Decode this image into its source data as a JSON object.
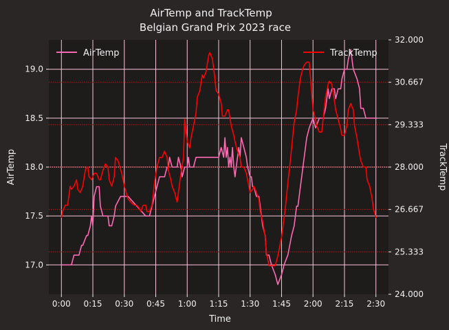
{
  "chart_data": {
    "type": "line",
    "title": "AirTemp and TrackTemp",
    "subtitle": "Belgian Grand Prix 2023 race",
    "xlabel": "Time",
    "ylabel_left": "AirTemp",
    "ylabel_right": "TrackTemp",
    "xlim": [
      -0.1,
      2.6
    ],
    "ylim_left": [
      16.7,
      19.3
    ],
    "ylim_right": [
      24.0,
      32.0
    ],
    "grid": true,
    "xticks": [
      0,
      0.25,
      0.5,
      0.75,
      1.0,
      1.25,
      1.5,
      1.75,
      2.0,
      2.25,
      2.5
    ],
    "xtick_labels": [
      "0:00",
      "0:15",
      "0:30",
      "0:45",
      "1:00",
      "1:15",
      "1:30",
      "1:45",
      "2:00",
      "2:15",
      "2:30"
    ],
    "yticks_left": [
      17.0,
      17.5,
      18.0,
      18.5,
      19.0
    ],
    "ytick_labels_left": [
      "17.0",
      "17.5",
      "18.0",
      "18.5",
      "19.0"
    ],
    "yticks_right": [
      24.0,
      25.333,
      26.667,
      28.0,
      29.333,
      30.667,
      32.0
    ],
    "ytick_labels_right": [
      "24.000",
      "25.333",
      "26.667",
      "28.000",
      "29.333",
      "30.667",
      "32.000"
    ],
    "legend_left": {
      "label": "AirTemp",
      "placement": "top-left"
    },
    "legend_right": {
      "label": "TrackTemp",
      "placement": "top-right"
    },
    "colors": {
      "background": "#292625",
      "plot_bg": "#1e1c1b",
      "text": "#f1f1f3",
      "air": "#ff69b4",
      "track": "#ff0000",
      "grid_left": "#fbc4dd",
      "grid_right": "#c41010"
    },
    "series": [
      {
        "name": "AirTemp",
        "axis": "left",
        "x": [
          0,
          0.08,
          0.1,
          0.125,
          0.14,
          0.16,
          0.17,
          0.2,
          0.21,
          0.23,
          0.24,
          0.25,
          0.26,
          0.28,
          0.3,
          0.31,
          0.33,
          0.34,
          0.37,
          0.38,
          0.4,
          0.42,
          0.43,
          0.47,
          0.48,
          0.5,
          0.53,
          0.67,
          0.7,
          0.72,
          0.74,
          0.76,
          0.78,
          0.8,
          0.82,
          0.84,
          0.85,
          0.86,
          0.88,
          0.9,
          0.92,
          0.93,
          0.95,
          0.96,
          0.98,
          1.0,
          1.01,
          1.02,
          1.04,
          1.05,
          1.07,
          1.25,
          1.27,
          1.29,
          1.3,
          1.31,
          1.32,
          1.33,
          1.34,
          1.35,
          1.36,
          1.37,
          1.38,
          1.39,
          1.4,
          1.41,
          1.42,
          1.43,
          1.45,
          1.47,
          1.48,
          1.5,
          1.51,
          1.52,
          1.53,
          1.55,
          1.57,
          1.58,
          1.6,
          1.62,
          1.63,
          1.65,
          1.67,
          1.7,
          1.72,
          1.75,
          1.77,
          1.8,
          1.83,
          1.85,
          1.87,
          1.88,
          1.9,
          1.92,
          1.93,
          1.95,
          1.97,
          2.0,
          2.02,
          2.05,
          2.08,
          2.1,
          2.12,
          2.13,
          2.15,
          2.17,
          2.18,
          2.2,
          2.22,
          2.23,
          2.25,
          2.27,
          2.28,
          2.3,
          2.32,
          2.35,
          2.37,
          2.38,
          2.4,
          2.42,
          2.45,
          2.47,
          2.48,
          2.5
        ],
        "values": [
          17.0,
          17.0,
          17.1,
          17.1,
          17.1,
          17.2,
          17.2,
          17.3,
          17.3,
          17.4,
          17.5,
          17.4,
          17.7,
          17.8,
          17.8,
          17.6,
          17.5,
          17.5,
          17.5,
          17.4,
          17.4,
          17.5,
          17.6,
          17.7,
          17.7,
          17.7,
          17.7,
          17.5,
          17.5,
          17.6,
          17.7,
          17.8,
          17.9,
          17.9,
          17.9,
          18.0,
          18.0,
          18.1,
          18.0,
          18.0,
          18.0,
          18.1,
          18.0,
          17.9,
          18.0,
          18.0,
          18.1,
          18.0,
          18.0,
          18.0,
          18.1,
          18.1,
          18.2,
          18.1,
          18.3,
          18.1,
          18.2,
          18.0,
          18.1,
          18.0,
          18.2,
          18.0,
          17.9,
          18.0,
          18.1,
          18.2,
          18.1,
          18.3,
          18.2,
          18.1,
          18.0,
          17.9,
          17.9,
          17.8,
          17.8,
          17.7,
          17.7,
          17.6,
          17.4,
          17.3,
          17.1,
          17.1,
          17.0,
          16.9,
          16.8,
          16.9,
          17.0,
          17.1,
          17.3,
          17.4,
          17.6,
          17.6,
          17.8,
          18.0,
          18.1,
          18.3,
          18.4,
          18.5,
          18.4,
          18.5,
          18.5,
          18.6,
          18.8,
          18.7,
          18.8,
          18.8,
          18.7,
          18.8,
          18.8,
          18.9,
          19.0,
          19.0,
          19.1,
          19.2,
          19.0,
          18.9,
          18.8,
          18.6,
          18.6,
          18.5,
          18.5,
          18.5,
          18.5,
          18.5
        ]
      },
      {
        "name": "TrackTemp",
        "axis": "right",
        "x": [
          0,
          0.01,
          0.03,
          0.05,
          0.07,
          0.08,
          0.1,
          0.12,
          0.13,
          0.15,
          0.17,
          0.19,
          0.2,
          0.21,
          0.22,
          0.24,
          0.26,
          0.28,
          0.3,
          0.31,
          0.33,
          0.35,
          0.37,
          0.38,
          0.4,
          0.42,
          0.43,
          0.45,
          0.48,
          0.5,
          0.53,
          0.55,
          0.58,
          0.6,
          0.62,
          0.63,
          0.65,
          0.67,
          0.68,
          0.7,
          0.72,
          0.74,
          0.76,
          0.78,
          0.8,
          0.82,
          0.84,
          0.85,
          0.87,
          0.88,
          0.9,
          0.92,
          0.93,
          0.95,
          0.97,
          0.98,
          1.0,
          1.02,
          1.03,
          1.05,
          1.07,
          1.08,
          1.1,
          1.12,
          1.13,
          1.15,
          1.17,
          1.18,
          1.2,
          1.22,
          1.23,
          1.25,
          1.27,
          1.28,
          1.3,
          1.32,
          1.33,
          1.35,
          1.37,
          1.38,
          1.4,
          1.42,
          1.43,
          1.45,
          1.47,
          1.48,
          1.5,
          1.52,
          1.53,
          1.55,
          1.57,
          1.58,
          1.6,
          1.62,
          1.63,
          1.65,
          1.67,
          1.7,
          1.72,
          1.75,
          1.77,
          1.78,
          1.8,
          1.82,
          1.83,
          1.85,
          1.87,
          1.88,
          1.9,
          1.92,
          1.93,
          1.95,
          1.97,
          1.98,
          2.0,
          2.02,
          2.03,
          2.05,
          2.07,
          2.08,
          2.1,
          2.12,
          2.13,
          2.15,
          2.17,
          2.18,
          2.2,
          2.22,
          2.23,
          2.25,
          2.27,
          2.28,
          2.3,
          2.32,
          2.33,
          2.35,
          2.37,
          2.38,
          2.4,
          2.42,
          2.43,
          2.45,
          2.47,
          2.48,
          2.5
        ],
        "values": [
          26.4,
          26.6,
          26.8,
          26.8,
          27.4,
          27.3,
          27.4,
          27.6,
          27.3,
          27.2,
          27.4,
          27.9,
          28.0,
          28.0,
          27.7,
          27.6,
          27.8,
          27.8,
          27.6,
          27.6,
          27.9,
          28.1,
          28.0,
          27.6,
          27.4,
          27.7,
          28.3,
          28.2,
          27.8,
          27.4,
          27.0,
          26.9,
          26.8,
          26.8,
          26.7,
          26.6,
          26.8,
          26.8,
          26.6,
          26.6,
          26.8,
          27.5,
          28.0,
          28.3,
          28.3,
          28.5,
          28.3,
          27.9,
          27.6,
          27.4,
          27.2,
          26.9,
          27.2,
          27.8,
          28.3,
          29.5,
          28.8,
          28.6,
          28.9,
          29.3,
          29.7,
          30.2,
          30.4,
          30.9,
          30.8,
          31.0,
          31.5,
          31.6,
          31.4,
          30.8,
          30.4,
          30.3,
          30.0,
          29.6,
          29.6,
          29.8,
          29.8,
          29.3,
          29.0,
          28.8,
          28.5,
          28.3,
          28.0,
          28.0,
          27.8,
          27.6,
          27.2,
          27.3,
          27.4,
          27.2,
          27.0,
          26.6,
          26.3,
          25.8,
          25.3,
          24.9,
          24.9,
          24.9,
          25.2,
          25.8,
          26.4,
          26.7,
          27.5,
          28.2,
          28.6,
          29.4,
          29.8,
          30.2,
          30.8,
          31.1,
          31.2,
          31.3,
          31.3,
          30.8,
          29.8,
          29.5,
          29.3,
          29.1,
          29.1,
          29.5,
          30.2,
          30.6,
          30.7,
          30.6,
          30.1,
          29.8,
          29.5,
          29.2,
          29.0,
          29.0,
          29.3,
          29.8,
          30.0,
          29.8,
          29.3,
          28.9,
          28.4,
          28.2,
          28.0,
          28.0,
          27.6,
          27.4,
          27.0,
          26.7,
          26.4
        ]
      }
    ]
  }
}
